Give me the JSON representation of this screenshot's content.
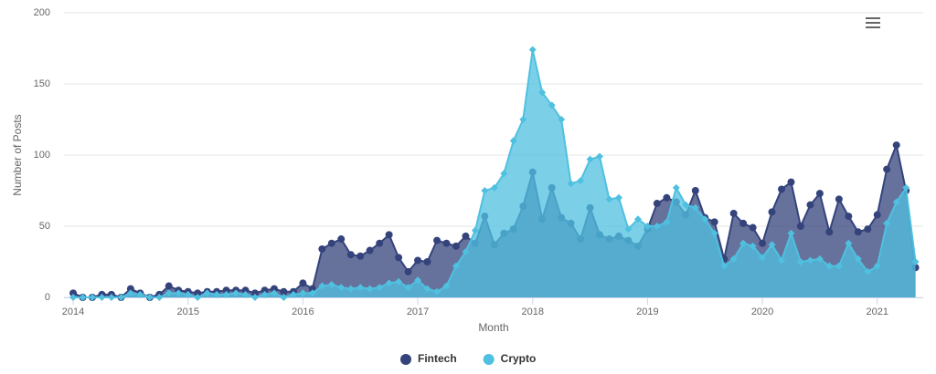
{
  "chart_data": {
    "type": "area",
    "x_label": "Month",
    "y_label": "Number of Posts",
    "x": [
      2014,
      2014.083,
      2014.167,
      2014.25,
      2014.333,
      2014.417,
      2014.5,
      2014.583,
      2014.667,
      2014.75,
      2014.833,
      2014.917,
      2015,
      2015.083,
      2015.167,
      2015.25,
      2015.333,
      2015.417,
      2015.5,
      2015.583,
      2015.667,
      2015.75,
      2015.833,
      2015.917,
      2016,
      2016.083,
      2016.167,
      2016.25,
      2016.333,
      2016.417,
      2016.5,
      2016.583,
      2016.667,
      2016.75,
      2016.833,
      2016.917,
      2017,
      2017.083,
      2017.167,
      2017.25,
      2017.333,
      2017.417,
      2017.5,
      2017.583,
      2017.667,
      2017.75,
      2017.833,
      2017.917,
      2018,
      2018.083,
      2018.167,
      2018.25,
      2018.333,
      2018.417,
      2018.5,
      2018.583,
      2018.667,
      2018.75,
      2018.833,
      2018.917,
      2019,
      2019.083,
      2019.167,
      2019.25,
      2019.333,
      2019.417,
      2019.5,
      2019.583,
      2019.667,
      2019.75,
      2019.833,
      2019.917,
      2020,
      2020.083,
      2020.167,
      2020.25,
      2020.333,
      2020.417,
      2020.5,
      2020.583,
      2020.667,
      2020.75,
      2020.833,
      2020.917,
      2021,
      2021.083,
      2021.167,
      2021.25,
      2021.333
    ],
    "series": [
      {
        "name": "Fintech",
        "color": "#34437b",
        "marker": "circle",
        "values": [
          3,
          0,
          0,
          2,
          2,
          0,
          6,
          3,
          0,
          2,
          8,
          5,
          4,
          3,
          4,
          4,
          5,
          5,
          5,
          3,
          5,
          6,
          4,
          4,
          10,
          6,
          34,
          38,
          41,
          30,
          29,
          33,
          38,
          44,
          28,
          18,
          26,
          25,
          40,
          38,
          36,
          43,
          38,
          57,
          37,
          45,
          48,
          64,
          88,
          55,
          77,
          56,
          52,
          41,
          63,
          44,
          41,
          43,
          40,
          36,
          48,
          66,
          70,
          67,
          58,
          75,
          56,
          53,
          27,
          59,
          52,
          49,
          38,
          60,
          76,
          81,
          50,
          65,
          73,
          46,
          69,
          57,
          46,
          48,
          58,
          90,
          107,
          75,
          21
        ]
      },
      {
        "name": "Crypto",
        "color": "#4fc0e0",
        "marker": "diamond",
        "values": [
          0,
          0,
          0,
          0,
          0,
          0,
          3,
          2,
          0,
          0,
          3,
          3,
          2,
          0,
          3,
          2,
          2,
          3,
          2,
          0,
          2,
          3,
          0,
          2,
          3,
          3,
          8,
          9,
          7,
          6,
          7,
          6,
          7,
          10,
          11,
          7,
          12,
          6,
          4,
          8,
          22,
          32,
          47,
          75,
          77,
          87,
          110,
          125,
          174,
          144,
          135,
          125,
          80,
          82,
          97,
          99,
          69,
          70,
          48,
          55,
          50,
          50,
          53,
          77,
          65,
          63,
          55,
          45,
          22,
          27,
          38,
          36,
          28,
          37,
          26,
          45,
          25,
          26,
          27,
          22,
          22,
          38,
          27,
          18,
          22,
          52,
          67,
          77,
          25
        ]
      }
    ],
    "xlim": [
      2013.92,
      2021.4
    ],
    "xticks": [
      2014,
      2015,
      2016,
      2017,
      2018,
      2019,
      2020,
      2021
    ],
    "ylim": [
      0,
      200
    ],
    "yticks": [
      0,
      50,
      100,
      150,
      200
    ],
    "grid": true,
    "legend": "bottom"
  }
}
